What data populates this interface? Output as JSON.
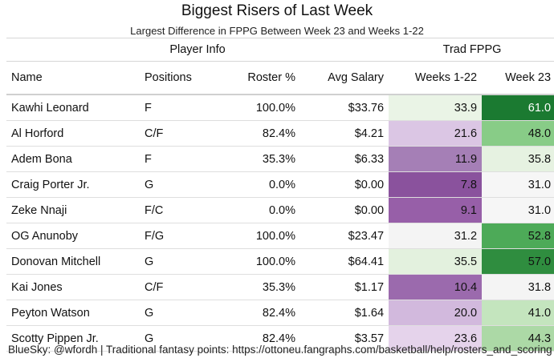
{
  "title": "Biggest Risers of Last Week",
  "subtitle": "Largest Difference in FPPG Between Week 23 and Weeks 1-22",
  "groups": {
    "player_info": "Player Info",
    "trad_fppg": "Trad FPPG"
  },
  "columns": {
    "name": "Name",
    "positions": "Positions",
    "roster": "Roster %",
    "salary": "Avg Salary",
    "weeks": "Weeks 1-22",
    "week23": "Week 23"
  },
  "rows": [
    {
      "name": "Kawhi Leonard",
      "pos": "F",
      "roster": "100.0%",
      "salary": "$33.76",
      "w122": "33.9",
      "w23": "61.0",
      "w122_color": "#eaf4e6",
      "w23_color": "#1b7a31",
      "w23_text": "#ffffff"
    },
    {
      "name": "Al Horford",
      "pos": "C/F",
      "roster": "82.4%",
      "salary": "$4.21",
      "w122": "21.6",
      "w23": "48.0",
      "w122_color": "#dbc6e4",
      "w23_color": "#88cc87",
      "w23_text": "#111111"
    },
    {
      "name": "Adem Bona",
      "pos": "F",
      "roster": "35.3%",
      "salary": "$6.33",
      "w122": "11.9",
      "w23": "35.8",
      "w122_color": "#a57fb6",
      "w23_color": "#e6f2e1",
      "w23_text": "#111111"
    },
    {
      "name": "Craig Porter Jr.",
      "pos": "G",
      "roster": "0.0%",
      "salary": "$0.00",
      "w122": "7.8",
      "w23": "31.0",
      "w122_color": "#8a529d",
      "w23_color": "#f6f6f6",
      "w23_text": "#111111"
    },
    {
      "name": "Zeke Nnaji",
      "pos": "F/C",
      "roster": "0.0%",
      "salary": "$0.00",
      "w122": "9.1",
      "w23": "31.0",
      "w122_color": "#975fa8",
      "w23_color": "#f6f6f6",
      "w23_text": "#111111"
    },
    {
      "name": "OG Anunoby",
      "pos": "F/G",
      "roster": "100.0%",
      "salary": "$23.47",
      "w122": "31.2",
      "w23": "52.8",
      "w122_color": "#f4f4f4",
      "w23_color": "#4daa58",
      "w23_text": "#111111"
    },
    {
      "name": "Donovan Mitchell",
      "pos": "G",
      "roster": "100.0%",
      "salary": "$64.41",
      "w122": "35.5",
      "w23": "57.0",
      "w122_color": "#e3f1de",
      "w23_color": "#2f8d3f",
      "w23_text": "#111111"
    },
    {
      "name": "Kai Jones",
      "pos": "C/F",
      "roster": "35.3%",
      "salary": "$1.17",
      "w122": "10.4",
      "w23": "31.8",
      "w122_color": "#9b6aad",
      "w23_color": "#f4f4f4",
      "w23_text": "#111111"
    },
    {
      "name": "Peyton Watson",
      "pos": "G",
      "roster": "82.4%",
      "salary": "$1.64",
      "w122": "20.0",
      "w23": "41.0",
      "w122_color": "#d2b9dd",
      "w23_color": "#c4e5be",
      "w23_text": "#111111"
    },
    {
      "name": "Scotty Pippen Jr.",
      "pos": "G",
      "roster": "82.4%",
      "salary": "$3.57",
      "w122": "23.6",
      "w23": "44.3",
      "w122_color": "#e5d3eb",
      "w23_color": "#acd9a6",
      "w23_text": "#111111"
    }
  ],
  "footer": "BlueSky: @wfordh | Traditional fantasy points: https://ottoneu.fangraphs.com/basketball/help/rosters_and_scoring"
}
